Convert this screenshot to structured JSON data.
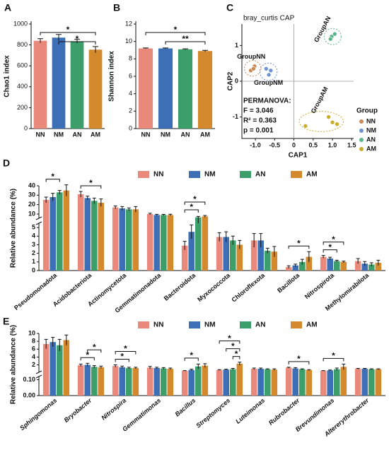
{
  "chart_data": [
    {
      "type": "bar",
      "panel": "A",
      "ylabel": "Chao1 index",
      "categories": [
        "NN",
        "NM",
        "AN",
        "AM"
      ],
      "values": [
        840,
        870,
        835,
        755
      ],
      "errors": [
        20,
        30,
        18,
        30
      ],
      "colors": [
        "#e8897c",
        "#3c6fb6",
        "#3c9e6a",
        "#d4892c"
      ],
      "ylim": [
        0,
        1000
      ],
      "yticks": [
        0,
        200,
        400,
        600,
        800,
        1000
      ],
      "sig": [
        {
          "groups": [
            "NN",
            "AM"
          ],
          "label": "*"
        },
        {
          "groups": [
            "NM",
            "AM"
          ],
          "label": "*"
        }
      ]
    },
    {
      "type": "bar",
      "panel": "B",
      "ylabel": "Shannon index",
      "categories": [
        "NN",
        "NM",
        "AN",
        "AM"
      ],
      "values": [
        9.2,
        9.2,
        9.1,
        8.9
      ],
      "errors": [
        0.05,
        0.05,
        0.05,
        0.08
      ],
      "colors": [
        "#e8897c",
        "#3c6fb6",
        "#3c9e6a",
        "#d4892c"
      ],
      "ylim": [
        0,
        12
      ],
      "yticks": [
        0,
        2,
        4,
        6,
        8,
        10,
        12
      ],
      "sig": [
        {
          "groups": [
            "NN",
            "AM"
          ],
          "label": "*"
        },
        {
          "groups": [
            "NM",
            "AM"
          ],
          "label": "**"
        }
      ]
    },
    {
      "type": "scatter",
      "panel": "C",
      "title": "bray_curtis CAP",
      "xlabel": "CAP1",
      "ylabel": "CAP2",
      "legend_title": "Group",
      "xlim": [
        -1.35,
        1.55
      ],
      "xticks": [
        {
          "value": -1,
          "label": "-1.0"
        },
        {
          "value": -0.5,
          "label": "-0.5"
        },
        0,
        0.5,
        {
          "value": 1,
          "label": "1.0"
        },
        1.5
      ],
      "ylim": [
        -1.6,
        1.6
      ],
      "yticks": [
        -1,
        0,
        1
      ],
      "annotations": [
        "PERMANOVA:",
        "F = 3.046",
        "R² = 0.363",
        "p = 0.001"
      ],
      "series": [
        {
          "name": "NN",
          "label": "GroupNN",
          "color": "#c98a58",
          "x": [
            -1.12,
            -1.02,
            -1.05
          ],
          "y": [
            0.3,
            0.42,
            0.35
          ]
        },
        {
          "name": "NM",
          "label": "GroupNM",
          "color": "#6f94d0",
          "x": [
            -0.72,
            -0.6,
            -0.65
          ],
          "y": [
            0.35,
            0.3,
            0.18
          ]
        },
        {
          "name": "AN",
          "label": "GroupAN",
          "color": "#5cb48a",
          "x": [
            0.98,
            1.06,
            0.95
          ],
          "y": [
            1.25,
            1.32,
            1.18
          ]
        },
        {
          "name": "AM",
          "label": "GroupAM",
          "color": "#c9ad2e",
          "x": [
            0.3,
            0.9,
            1.0,
            1.12
          ],
          "y": [
            -1.25,
            -1.0,
            -1.15,
            -1.2
          ]
        }
      ]
    },
    {
      "type": "grouped_bar",
      "panel": "D",
      "ylabel": "Relative abundance (%)",
      "categories": [
        "Pseudomonadota",
        "Acidobacteriota",
        "Actinomycetota",
        "Gemmatimonadota",
        "Bacteroidota",
        "Myxococcota",
        "Chloroflexota",
        "Bacillota",
        "Nitrospirota",
        "Methylomirabilota"
      ],
      "ylim": [
        0,
        40
      ],
      "ybreak": 5.5,
      "yticks": [
        0,
        1,
        2,
        3,
        4,
        5,
        10,
        20,
        30,
        40
      ],
      "series": [
        {
          "name": "NN",
          "color": "#e8897c",
          "values": [
            25,
            31,
            17,
            10,
            2.9,
            3.9,
            3.5,
            0.4,
            1.6,
            1.1
          ],
          "errors": [
            3,
            3,
            1.5,
            0.8,
            0.5,
            0.5,
            0.8,
            0.15,
            0.15,
            0.3
          ]
        },
        {
          "name": "NM",
          "color": "#3c6fb6",
          "values": [
            28,
            27,
            16,
            9,
            4.5,
            3.9,
            3.5,
            0.6,
            1.4,
            0.8
          ],
          "errors": [
            4,
            2,
            2,
            0.7,
            0.8,
            0.6,
            0.8,
            0.15,
            0.15,
            0.25
          ]
        },
        {
          "name": "AN",
          "color": "#3c9e6a",
          "values": [
            33,
            24,
            15,
            9,
            6.5,
            3.5,
            2.3,
            1.0,
            1.1,
            0.7
          ],
          "errors": [
            2,
            3,
            1.5,
            0.6,
            1,
            0.5,
            0.3,
            0.3,
            0.1,
            0.2
          ]
        },
        {
          "name": "AM",
          "color": "#d4892c",
          "values": [
            35,
            22,
            15,
            9,
            7.5,
            3.0,
            2.2,
            1.6,
            1.0,
            0.9
          ],
          "errors": [
            6,
            4,
            3,
            0.8,
            1,
            0.5,
            0.6,
            0.6,
            0.1,
            0.3
          ]
        }
      ],
      "sig": [
        {
          "category": "Pseudomonadota",
          "groups": [
            "NN",
            "AN"
          ],
          "label": "*"
        },
        {
          "category": "Acidobacteriota",
          "groups": [
            "NN",
            "AM"
          ],
          "label": "*"
        },
        {
          "category": "Bacteroidota",
          "groups": [
            "NN",
            "AN"
          ],
          "label": "*"
        },
        {
          "category": "Bacteroidota",
          "groups": [
            "NN",
            "AM"
          ],
          "label": "*"
        },
        {
          "category": "Bacillota",
          "groups": [
            "NN",
            "AM"
          ],
          "label": "*"
        },
        {
          "category": "Nitrospirota",
          "groups": [
            "NN",
            "AN"
          ],
          "label": "*"
        },
        {
          "category": "Nitrospirota",
          "groups": [
            "NN",
            "AM"
          ],
          "label": "*"
        }
      ]
    },
    {
      "type": "grouped_bar",
      "panel": "E",
      "ylabel": "Relative abundance (%)",
      "categories": [
        "Sphingomonas",
        "Bryobacter",
        "Nitrospira",
        "Gemmatimonas",
        "Bacillus",
        "Streptomyces",
        "Luteimonas",
        "Rubrobacter",
        "Brevundimonas",
        "Altererythrobacter"
      ],
      "ylim": [
        0,
        10
      ],
      "ybreak": 0.12,
      "yticks": [
        {
          "value": 0,
          "label": "0.00"
        },
        {
          "value": 0.1,
          "label": "0.10"
        },
        2,
        4,
        6,
        8,
        10
      ],
      "series": [
        {
          "name": "NN",
          "color": "#e8897c",
          "values": [
            7.3,
            1.9,
            1.7,
            1.3,
            0.5,
            0.7,
            1.0,
            1.3,
            0.5,
            1.0
          ],
          "errors": [
            1.2,
            0.3,
            0.3,
            0.3,
            0.05,
            0.1,
            0.2,
            0.1,
            0.05,
            0.1
          ]
        },
        {
          "name": "NM",
          "color": "#3c6fb6",
          "values": [
            7.8,
            2.0,
            1.4,
            1.2,
            0.7,
            0.8,
            1.0,
            1.1,
            0.6,
            1.0
          ],
          "errors": [
            1.2,
            0.4,
            0.3,
            0.2,
            0.2,
            0.1,
            0.2,
            0.2,
            0.1,
            0.1
          ]
        },
        {
          "name": "AN",
          "color": "#3c9e6a",
          "values": [
            7.0,
            1.5,
            1.2,
            1.1,
            1.6,
            0.9,
            0.9,
            0.9,
            0.9,
            0.9
          ],
          "errors": [
            1.5,
            0.3,
            0.2,
            0.2,
            0.6,
            0.2,
            0.1,
            0.1,
            0.3,
            0.1
          ]
        },
        {
          "name": "AM",
          "color": "#d4892c",
          "values": [
            8.3,
            1.4,
            1.2,
            1.0,
            1.8,
            2.3,
            0.8,
            0.7,
            1.5,
            0.9
          ],
          "errors": [
            1.3,
            0.3,
            0.2,
            0.2,
            0.5,
            0.4,
            0.2,
            0.1,
            0.7,
            0.1
          ]
        }
      ],
      "sig": [
        {
          "category": "Bryobacter",
          "groups": [
            "NN",
            "AN"
          ],
          "label": "*"
        },
        {
          "category": "Bryobacter",
          "groups": [
            "NM",
            "AM"
          ],
          "label": "*"
        },
        {
          "category": "Nitrospira",
          "groups": [
            "NN",
            "AN"
          ],
          "label": "*"
        },
        {
          "category": "Nitrospira",
          "groups": [
            "NN",
            "AM"
          ],
          "label": "*"
        },
        {
          "category": "Bacillus",
          "groups": [
            "NN",
            "AN"
          ],
          "label": "*"
        },
        {
          "category": "Streptomyces",
          "groups": [
            "AN",
            "AM"
          ],
          "label": "*"
        },
        {
          "category": "Streptomyces",
          "groups": [
            "NM",
            "AM"
          ],
          "label": "*"
        },
        {
          "category": "Streptomyces",
          "groups": [
            "NN",
            "AM"
          ],
          "label": "*"
        },
        {
          "category": "Rubrobacter",
          "groups": [
            "NN",
            "AM"
          ],
          "label": "*"
        },
        {
          "category": "Brevundimonas",
          "groups": [
            "NN",
            "AM"
          ],
          "label": "*"
        }
      ]
    }
  ]
}
